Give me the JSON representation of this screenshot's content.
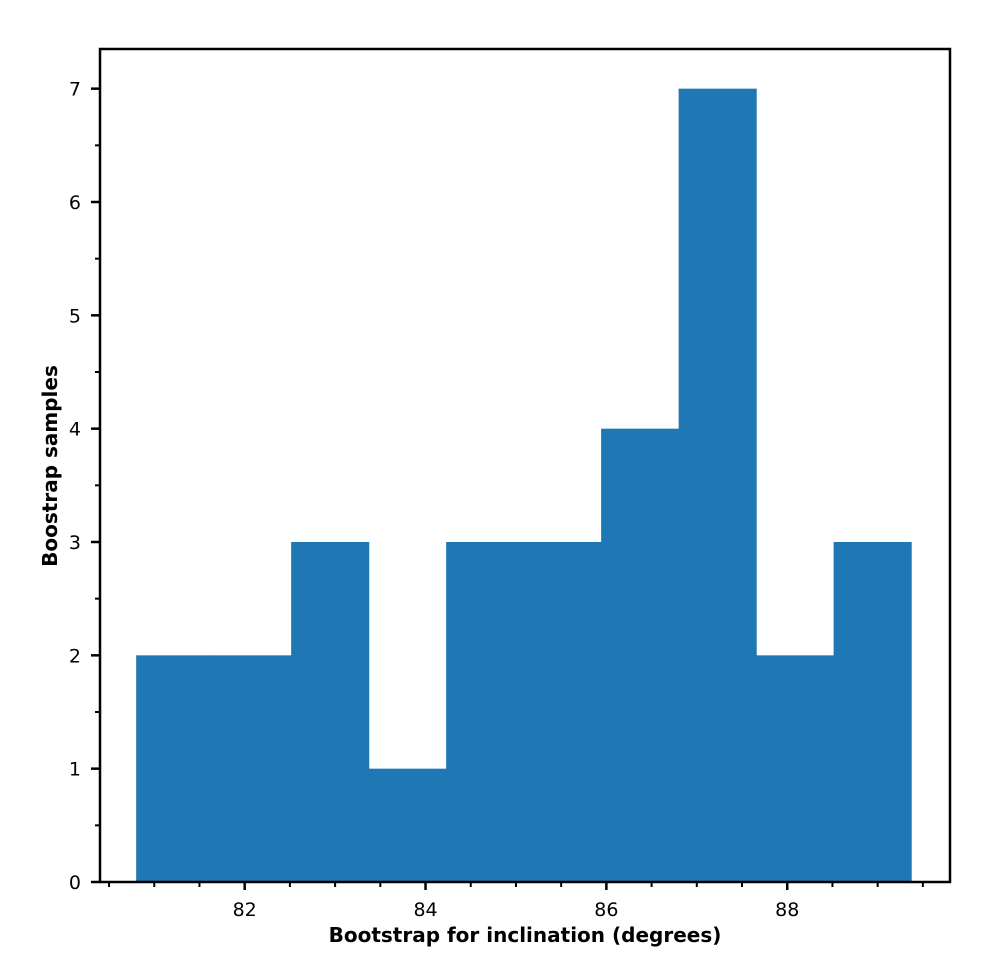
{
  "chart_data": {
    "type": "bar",
    "title": "",
    "xlabel": "Bootstrap for inclination (degrees)",
    "ylabel": "Boostrap samples",
    "bin_edges": [
      80.8,
      81.657,
      82.514,
      83.371,
      84.228,
      85.085,
      85.942,
      86.799,
      87.656,
      88.513,
      89.37
    ],
    "values": [
      2,
      2,
      3,
      1,
      3,
      3,
      4,
      7,
      2,
      3
    ],
    "xlim": [
      80.4,
      89.8
    ],
    "ylim": [
      0,
      7.35
    ],
    "x_major_ticks": [
      82,
      84,
      86,
      88
    ],
    "x_tick_labels": [
      "82",
      "84",
      "86",
      "88"
    ],
    "x_minor_ticks": [
      80.5,
      81,
      81.5,
      82.5,
      83,
      83.5,
      84.5,
      85,
      85.5,
      86.5,
      87,
      87.5,
      88.5,
      89,
      89.5
    ],
    "y_major_ticks": [
      0,
      1,
      2,
      3,
      4,
      5,
      6,
      7
    ],
    "y_tick_labels": [
      "0",
      "1",
      "2",
      "3",
      "4",
      "5",
      "6",
      "7"
    ],
    "y_minor_ticks": [
      0.5,
      1.5,
      2.5,
      3.5,
      4.5,
      5.5,
      6.5
    ],
    "bar_color": "#1f77b4",
    "grid": false,
    "legend": "none"
  }
}
